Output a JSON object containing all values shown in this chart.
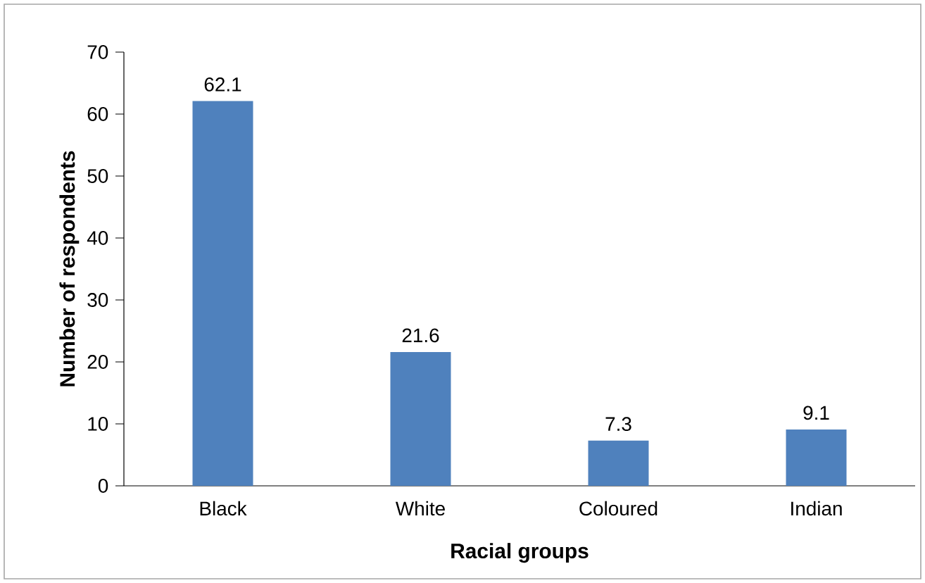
{
  "chart_data": {
    "type": "bar",
    "xlabel": "Racial groups",
    "ylabel": "Number of respondents",
    "categories": [
      "Black",
      "White",
      "Coloured",
      "Indian"
    ],
    "values": [
      62.1,
      21.6,
      7.3,
      9.1
    ],
    "color": "#4f81bd",
    "data_labels": true,
    "grid": false,
    "ylim": [
      0,
      70
    ],
    "yticks": [
      0,
      10,
      20,
      30,
      40,
      50,
      60,
      70
    ]
  }
}
